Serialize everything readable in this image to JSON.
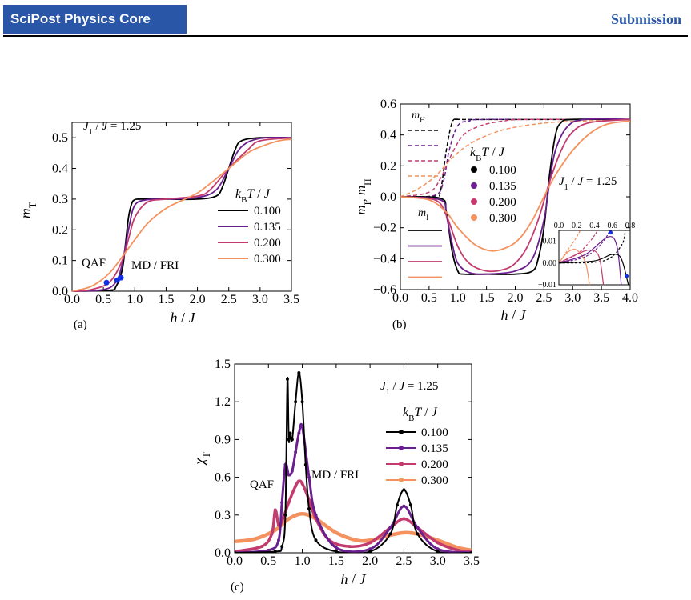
{
  "header": {
    "journal": "SciPost Physics Core",
    "status": "Submission"
  },
  "colors": {
    "0.100": "#000000",
    "0.135": "#6a1f8f",
    "0.200": "#c33b6e",
    "0.300": "#f3925e",
    "point": "#1030e0"
  },
  "chart_data": [
    {
      "panel": "(a)",
      "type": "line",
      "xlabel": "h / J",
      "ylabel": "m_T",
      "xlim": [
        0,
        3.5
      ],
      "ylim": [
        0,
        0.55
      ],
      "xticks": [
        "0.0",
        "0.5",
        "1.0",
        "1.5",
        "2.0",
        "2.5",
        "3.0",
        "3.5"
      ],
      "yticks": [
        "0.0",
        "0.1",
        "0.2",
        "0.3",
        "0.4",
        "0.5"
      ],
      "annotation": "J1 / J = 1.25",
      "legend_title": "kBT / J",
      "legend_position": "right",
      "region_labels": [
        "QAF",
        "MD / FRI"
      ],
      "series": [
        {
          "name": "0.100",
          "x": [
            0,
            0.6,
            0.7,
            0.8,
            0.85,
            0.9,
            0.95,
            1.0,
            1.1,
            1.5,
            2.0,
            2.3,
            2.4,
            2.5,
            2.6,
            2.7,
            3.0,
            3.5
          ],
          "y": [
            0,
            0.003,
            0.015,
            0.07,
            0.15,
            0.24,
            0.285,
            0.298,
            0.3,
            0.3,
            0.3,
            0.31,
            0.34,
            0.4,
            0.46,
            0.49,
            0.5,
            0.5
          ]
        },
        {
          "name": "0.135",
          "x": [
            0,
            0.5,
            0.7,
            0.8,
            0.9,
            1.0,
            1.2,
            1.5,
            2.0,
            2.3,
            2.5,
            2.7,
            3.0,
            3.5
          ],
          "y": [
            0,
            0.005,
            0.03,
            0.09,
            0.2,
            0.28,
            0.298,
            0.3,
            0.305,
            0.33,
            0.4,
            0.47,
            0.498,
            0.5
          ]
        },
        {
          "name": "0.200",
          "x": [
            0,
            0.3,
            0.6,
            0.8,
            0.9,
            1.0,
            1.2,
            1.5,
            2.0,
            2.2,
            2.5,
            2.8,
            3.0,
            3.5
          ],
          "y": [
            0,
            0.005,
            0.03,
            0.1,
            0.17,
            0.24,
            0.29,
            0.3,
            0.31,
            0.33,
            0.4,
            0.46,
            0.49,
            0.5
          ]
        },
        {
          "name": "0.300",
          "x": [
            0,
            0.3,
            0.6,
            0.9,
            1.2,
            1.5,
            1.8,
            2.0,
            2.2,
            2.5,
            2.8,
            3.0,
            3.3,
            3.5
          ],
          "y": [
            0,
            0.015,
            0.06,
            0.14,
            0.22,
            0.27,
            0.3,
            0.32,
            0.35,
            0.4,
            0.45,
            0.47,
            0.49,
            0.495
          ]
        }
      ],
      "points": [
        {
          "x": 0.55,
          "y": 0.028
        },
        {
          "x": 0.72,
          "y": 0.036
        },
        {
          "x": 0.78,
          "y": 0.044
        }
      ]
    },
    {
      "panel": "(b)",
      "type": "line",
      "xlabel": "h / J",
      "ylabel": "m_I, m_H",
      "xlim": [
        0,
        4.0
      ],
      "ylim": [
        -0.6,
        0.6
      ],
      "xticks": [
        "0.0",
        "0.5",
        "1.0",
        "1.5",
        "2.0",
        "2.5",
        "3.0",
        "3.5",
        "4.0"
      ],
      "yticks": [
        "0.6",
        "0.4",
        "0.2",
        "0.0",
        "−0.2",
        "−0.4",
        "−0.6"
      ],
      "annotation": "J1 / J = 1.25",
      "legend_title": "kBT / J",
      "legend_labels": [
        "m_H",
        "m_I"
      ],
      "series_mI": [
        {
          "name": "0.100",
          "x": [
            0,
            0.7,
            0.8,
            0.9,
            1.0,
            1.1,
            1.5,
            2.0,
            2.3,
            2.4,
            2.5,
            2.6,
            2.7,
            2.8,
            3.0,
            4.0
          ],
          "y": [
            0,
            -0.01,
            -0.1,
            -0.35,
            -0.48,
            -0.5,
            -0.5,
            -0.5,
            -0.48,
            -0.4,
            -0.2,
            0.15,
            0.4,
            0.48,
            0.5,
            0.5
          ]
        },
        {
          "name": "0.135",
          "x": [
            0,
            0.7,
            0.8,
            0.9,
            1.0,
            1.2,
            1.5,
            2.0,
            2.3,
            2.5,
            2.6,
            2.7,
            2.9,
            3.2,
            4.0
          ],
          "y": [
            0,
            -0.02,
            -0.12,
            -0.3,
            -0.43,
            -0.49,
            -0.5,
            -0.48,
            -0.4,
            -0.15,
            0.1,
            0.3,
            0.45,
            0.5,
            0.5
          ]
        },
        {
          "name": "0.200",
          "x": [
            0,
            0.6,
            0.8,
            1.0,
            1.2,
            1.5,
            1.8,
            2.0,
            2.2,
            2.4,
            2.6,
            2.8,
            3.0,
            3.3,
            4.0
          ],
          "y": [
            0,
            -0.02,
            -0.12,
            -0.32,
            -0.43,
            -0.48,
            -0.47,
            -0.43,
            -0.33,
            -0.15,
            0.1,
            0.3,
            0.42,
            0.48,
            0.5
          ]
        },
        {
          "name": "0.300",
          "x": [
            0,
            0.5,
            0.8,
            1.0,
            1.3,
            1.6,
            1.9,
            2.1,
            2.3,
            2.5,
            2.7,
            3.0,
            3.3,
            3.6,
            4.0
          ],
          "y": [
            0,
            -0.02,
            -0.1,
            -0.2,
            -0.31,
            -0.35,
            -0.32,
            -0.26,
            -0.15,
            0,
            0.14,
            0.3,
            0.41,
            0.47,
            0.49
          ]
        }
      ],
      "series_mH": [
        {
          "name": "0.100",
          "x": [
            0,
            0.6,
            0.7,
            0.8,
            0.9,
            1.0,
            1.2,
            4.0
          ],
          "y": [
            0,
            0.005,
            0.04,
            0.3,
            0.48,
            0.5,
            0.5,
            0.5
          ]
        },
        {
          "name": "0.135",
          "x": [
            0,
            0.6,
            0.75,
            0.85,
            1.0,
            1.2,
            1.5,
            4.0
          ],
          "y": [
            0,
            0.01,
            0.1,
            0.3,
            0.46,
            0.49,
            0.5,
            0.5
          ]
        },
        {
          "name": "0.200",
          "x": [
            0,
            0.5,
            0.7,
            0.9,
            1.1,
            1.4,
            1.8,
            2.2,
            4.0
          ],
          "y": [
            0,
            0.03,
            0.12,
            0.28,
            0.4,
            0.46,
            0.49,
            0.5,
            0.5
          ]
        },
        {
          "name": "0.300",
          "x": [
            0,
            0.3,
            0.6,
            0.9,
            1.2,
            1.6,
            2.0,
            2.6,
            3.2,
            4.0
          ],
          "y": [
            0,
            0.05,
            0.13,
            0.25,
            0.34,
            0.41,
            0.45,
            0.48,
            0.49,
            0.5
          ]
        }
      ],
      "inset": {
        "xlim": [
          0,
          0.8
        ],
        "ylim": [
          -0.01,
          0.015
        ],
        "xticks": [
          "0.0",
          "0.2",
          "0.4",
          "0.6",
          "0.8"
        ],
        "yticks": [
          "0.01",
          "0.00",
          "−0.01"
        ]
      }
    },
    {
      "panel": "(c)",
      "type": "line",
      "xlabel": "h / J",
      "ylabel": "χ_T",
      "xlim": [
        0,
        3.5
      ],
      "ylim": [
        0,
        1.5
      ],
      "xticks": [
        "0.0",
        "0.5",
        "1.0",
        "1.5",
        "2.0",
        "2.5",
        "3.0",
        "3.5"
      ],
      "yticks": [
        "0.0",
        "0.3",
        "0.6",
        "0.9",
        "1.2",
        "1.5"
      ],
      "annotation": "J1 / J = 1.25",
      "legend_title": "kBT / J",
      "region_labels": [
        "QAF",
        "MD / FRI"
      ],
      "series": [
        {
          "name": "0.100",
          "x": [
            0,
            0.6,
            0.7,
            0.75,
            0.78,
            0.8,
            0.82,
            0.85,
            0.9,
            0.95,
            1.0,
            1.05,
            1.1,
            1.2,
            1.5,
            2.0,
            2.3,
            2.4,
            2.5,
            2.6,
            2.7,
            3.0,
            3.5
          ],
          "y": [
            0,
            0.01,
            0.05,
            0.3,
            1.38,
            0.9,
            0.95,
            0.9,
            1.2,
            1.43,
            1.2,
            0.7,
            0.35,
            0.1,
            0.01,
            0.01,
            0.15,
            0.38,
            0.5,
            0.38,
            0.15,
            0.01,
            0
          ]
        },
        {
          "name": "0.135",
          "x": [
            0,
            0.5,
            0.65,
            0.7,
            0.75,
            0.8,
            0.85,
            0.9,
            0.95,
            1.0,
            1.1,
            1.2,
            1.5,
            2.0,
            2.3,
            2.5,
            2.7,
            3.0,
            3.5
          ],
          "y": [
            0,
            0.02,
            0.1,
            0.4,
            0.7,
            0.62,
            0.65,
            0.8,
            0.95,
            1.0,
            0.6,
            0.3,
            0.04,
            0.03,
            0.2,
            0.37,
            0.2,
            0.03,
            0
          ]
        },
        {
          "name": "0.200",
          "x": [
            0,
            0.4,
            0.55,
            0.6,
            0.65,
            0.7,
            0.8,
            0.9,
            0.95,
            1.0,
            1.1,
            1.2,
            1.4,
            1.7,
            2.0,
            2.3,
            2.5,
            2.7,
            3.0,
            3.3,
            3.5
          ],
          "y": [
            0.01,
            0.05,
            0.15,
            0.34,
            0.22,
            0.25,
            0.4,
            0.53,
            0.57,
            0.55,
            0.42,
            0.27,
            0.1,
            0.05,
            0.08,
            0.2,
            0.27,
            0.2,
            0.08,
            0.02,
            0.01
          ]
        },
        {
          "name": "0.300",
          "x": [
            0,
            0.3,
            0.6,
            0.8,
            1.0,
            1.2,
            1.5,
            1.8,
            2.0,
            2.3,
            2.5,
            2.7,
            3.0,
            3.3,
            3.5
          ],
          "y": [
            0.09,
            0.11,
            0.18,
            0.27,
            0.31,
            0.27,
            0.16,
            0.1,
            0.1,
            0.14,
            0.16,
            0.15,
            0.1,
            0.04,
            0.02
          ]
        }
      ]
    }
  ]
}
